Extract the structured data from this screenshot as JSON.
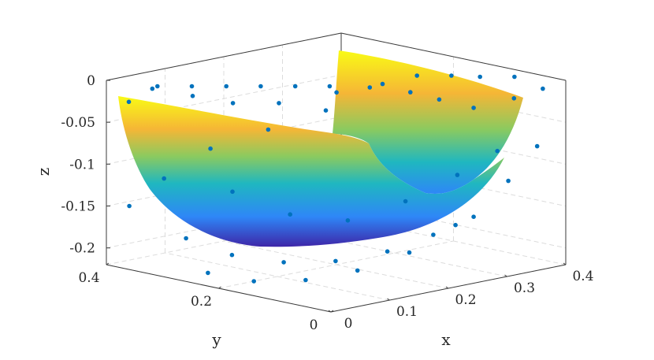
{
  "chart_data": {
    "type": "surface3d",
    "title": "",
    "xlabel": "x",
    "ylabel": "y",
    "zlabel": "z",
    "xlim": [
      0,
      0.4
    ],
    "ylim": [
      0,
      0.4
    ],
    "zlim": [
      -0.22,
      0
    ],
    "xticks": [
      "0",
      "0.1",
      "0.2",
      "0.3",
      "0.4"
    ],
    "yticks": [
      "0",
      "0.2",
      "0.4"
    ],
    "zticks": [
      "0",
      "-0.05",
      "-0.1",
      "-0.15",
      "-0.2"
    ],
    "grid": true,
    "colormap": "parula",
    "surface": {
      "description_fn": "bowl",
      "colors": [
        "#3e26a8",
        "#2e87f7",
        "#1fb7c0",
        "#8bca5f",
        "#f5b636",
        "#f9fb15"
      ]
    },
    "scatter_color": "#0072bd",
    "scatter_points": [
      [
        0.0,
        0.36,
        -0.02
      ],
      [
        0.02,
        0.33,
        0.0
      ],
      [
        0.05,
        0.3,
        0.0
      ],
      [
        0.08,
        0.27,
        0.0
      ],
      [
        0.11,
        0.24,
        0.0
      ],
      [
        0.14,
        0.21,
        0.0
      ],
      [
        0.17,
        0.18,
        0.0
      ],
      [
        0.2,
        0.14,
        0.0
      ],
      [
        0.04,
        0.36,
        -0.01
      ],
      [
        0.08,
        0.33,
        -0.02
      ],
      [
        0.12,
        0.3,
        -0.03
      ],
      [
        0.16,
        0.26,
        -0.03
      ],
      [
        0.22,
        0.22,
        -0.02
      ],
      [
        0.26,
        0.18,
        -0.01
      ],
      [
        0.29,
        0.15,
        0.0
      ],
      [
        0.32,
        0.12,
        0.0
      ],
      [
        0.34,
        0.09,
        0.0
      ],
      [
        0.37,
        0.06,
        0.0
      ],
      [
        0.25,
        0.12,
        -0.01
      ],
      [
        0.28,
        0.1,
        -0.02
      ],
      [
        0.31,
        0.07,
        -0.03
      ],
      [
        0.35,
        0.04,
        -0.02
      ],
      [
        0.38,
        0.02,
        -0.01
      ],
      [
        0.24,
        0.26,
        -0.05
      ],
      [
        0.18,
        0.3,
        -0.07
      ],
      [
        0.12,
        0.34,
        -0.09
      ],
      [
        0.06,
        0.36,
        -0.12
      ],
      [
        0.02,
        0.38,
        -0.15
      ],
      [
        0.1,
        0.28,
        -0.13
      ],
      [
        0.16,
        0.24,
        -0.16
      ],
      [
        0.22,
        0.2,
        -0.17
      ],
      [
        0.28,
        0.16,
        -0.15
      ],
      [
        0.33,
        0.12,
        -0.12
      ],
      [
        0.36,
        0.08,
        -0.09
      ],
      [
        0.04,
        0.3,
        -0.18
      ],
      [
        0.08,
        0.26,
        -0.2
      ],
      [
        0.13,
        0.22,
        -0.21
      ],
      [
        0.18,
        0.18,
        -0.21
      ],
      [
        0.23,
        0.14,
        -0.2
      ],
      [
        0.27,
        0.1,
        -0.18
      ],
      [
        0.31,
        0.07,
        -0.16
      ],
      [
        0.35,
        0.05,
        -0.12
      ],
      [
        0.38,
        0.03,
        -0.08
      ],
      [
        0.02,
        0.24,
        -0.21
      ],
      [
        0.06,
        0.2,
        -0.22
      ],
      [
        0.11,
        0.16,
        -0.22
      ],
      [
        0.16,
        0.12,
        -0.21
      ],
      [
        0.21,
        0.08,
        -0.19
      ],
      [
        0.26,
        0.05,
        -0.16
      ]
    ]
  }
}
